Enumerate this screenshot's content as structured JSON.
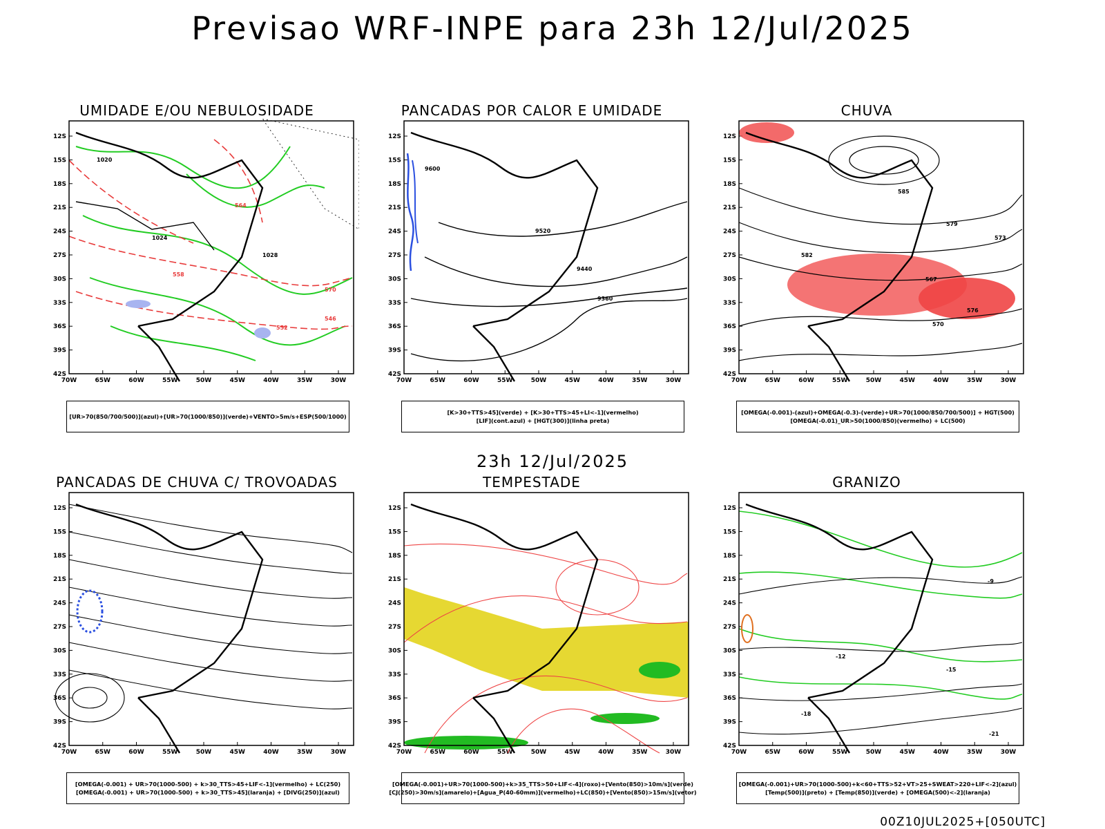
{
  "header": {
    "title": "Previsao WRF-INPE  para 23h 12/Jul/2025"
  },
  "middle": {
    "title": "23h 12/Jul/2025"
  },
  "footer": {
    "stamp": "00Z10JUL2025+[050UTC]"
  },
  "axes": {
    "lat_ticks": [
      "12S",
      "15S",
      "18S",
      "21S",
      "24S",
      "27S",
      "30S",
      "33S",
      "36S",
      "39S",
      "42S"
    ],
    "lon_ticks": [
      "70W",
      "65W",
      "60W",
      "55W",
      "50W",
      "45W",
      "40W",
      "35W",
      "30W"
    ]
  },
  "panels": [
    {
      "id": "umidade",
      "title": "UMIDADE E/OU NEBULOSIDADE",
      "legend": [
        "[UR>70(850/700/500)](azul)+[UR>70(1000/850)](verde)+VENTO>5m/s+ESP(500/1000)"
      ],
      "contour_labels": [
        "1020",
        "1024",
        "1028",
        "570",
        "564",
        "558",
        "552",
        "546"
      ],
      "colors": {
        "humidity_low": "#22cc22",
        "thickness": "#e83b3b",
        "humidity_high": "#a8b4f0"
      }
    },
    {
      "id": "pancadas-calor",
      "title": "PANCADAS POR CALOR E UMIDADE",
      "legend": [
        "[K>30+TTS>45](verde) + [K>30+TTS>45+LI<-1](vermelho)",
        "[LIF](cont.azul) + [HGT(300)](linha preta)"
      ],
      "contour_labels": [
        "9600",
        "9520",
        "9440",
        "9360"
      ],
      "colors": {
        "lif": "#2a4fe0",
        "hgt": "#000000"
      }
    },
    {
      "id": "chuva",
      "title": "CHUVA",
      "legend": [
        "[OMEGA(-0.001)-(azul)+OMEGA(-0.3)-(verde)+UR>70(1000/850/700/500)] + HGT(500)",
        "[OMEGA(-0.01)_UR>50(1000/850)(vermelho) + LC(500)"
      ],
      "contour_labels": [
        "585",
        "579",
        "573",
        "567",
        "582",
        "576",
        "570"
      ],
      "colors": {
        "rain": "#f04545"
      }
    },
    {
      "id": "trovoadas",
      "title": "PANCADAS DE CHUVA C/ TROVOADAS",
      "legend": [
        "[OMEGA(-0.001) + UR>70(1000-500) + k>30_TTS>45+LIF<-1](vermelho) + LC(250)",
        "[OMEGA(-0.001) + UR>70(1000-500) + k>30_TTS>45](laranja) + [DIVG(250)](azul)"
      ],
      "contour_labels": [],
      "colors": {
        "divg": "#2a4fe0"
      }
    },
    {
      "id": "tempestade",
      "title": "TEMPESTADE",
      "legend": [
        "[OMEGA(-0.001)+UR>70(1000-500)+k>35_TTS>50+LIF<-4](roxo)+[Vento(850)>10m/s](verde)",
        "[CJ(250)>30m/s](amarelo)+[Agua_P(40-60mm)](vermelho)+LC(850)+[Vento(850)>15m/s](vetor)"
      ],
      "contour_labels": [],
      "colors": {
        "jet": "#e6d832",
        "streamlines": "#ee4444",
        "wind": "#22bb22"
      }
    },
    {
      "id": "granizo",
      "title": "GRANIZO",
      "legend": [
        "[OMEGA(-0.001)+UR>70(1000-500)+k<60+TTS>52+VT>25+SWEAT>220+LIF<-2](azul)",
        "[Temp(500)](preto) + [Temp(850)](verde) + [OMEGA(500)<-2](laranja)"
      ],
      "contour_labels": [
        "-9",
        "-12",
        "-15",
        "-18",
        "-21"
      ],
      "colors": {
        "temp850": "#22cc22",
        "temp500": "#000000",
        "omega": "#e07020"
      }
    }
  ]
}
